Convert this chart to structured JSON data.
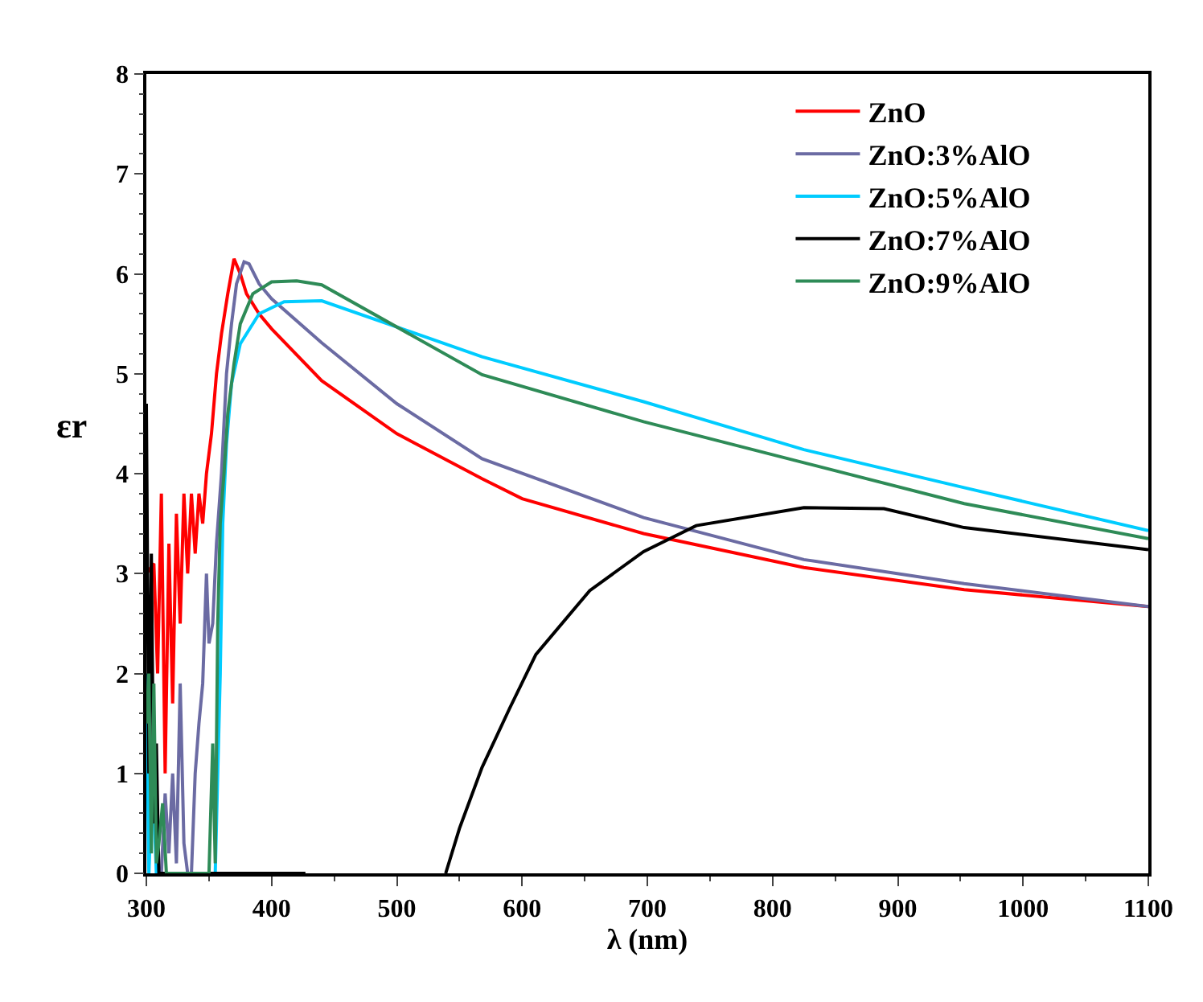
{
  "chart_data": {
    "type": "line",
    "xlabel": "λ (nm)",
    "ylabel": "εr",
    "xlim": [
      300,
      1100
    ],
    "xticks": [
      300,
      400,
      500,
      600,
      700,
      800,
      900,
      1000,
      1100
    ],
    "ylim": [
      0,
      8
    ],
    "yticks": [
      0,
      1,
      2,
      3,
      4,
      5,
      6,
      7,
      8
    ],
    "legend": "top right",
    "marker": "none",
    "line_style": "solid",
    "series": [
      {
        "name": "ZnO",
        "color": "#ff0000",
        "x": [
          300,
          306,
          309,
          312,
          315,
          318,
          321,
          324,
          327,
          330,
          333,
          336,
          339,
          342,
          345,
          348,
          352,
          356,
          360,
          365,
          370,
          375,
          380,
          390,
          400,
          440,
          500,
          568,
          600,
          697,
          825,
          953,
          1100
        ],
        "values": [
          3.0,
          3.1,
          2.0,
          3.8,
          1.0,
          3.3,
          1.7,
          3.6,
          2.5,
          3.8,
          3.0,
          3.8,
          3.2,
          3.8,
          3.5,
          4.0,
          4.4,
          5.0,
          5.4,
          5.8,
          6.15,
          6.0,
          5.8,
          5.6,
          5.45,
          4.93,
          4.4,
          3.95,
          3.75,
          3.4,
          3.06,
          2.84,
          2.67
        ]
      },
      {
        "name": "ZnO:3%AlO",
        "color": "#6b6ba3",
        "x": [
          312,
          315,
          318,
          321,
          324,
          327,
          330,
          333,
          336,
          339,
          342,
          345,
          348,
          350,
          353,
          356,
          360,
          364,
          368,
          372,
          378,
          382,
          390,
          400,
          440,
          500,
          568,
          697,
          825,
          953,
          1100
        ],
        "values": [
          0,
          0.8,
          0.2,
          1.0,
          0.1,
          1.9,
          0.3,
          0,
          0,
          1.0,
          1.5,
          1.9,
          3.0,
          2.3,
          2.5,
          3.3,
          4.0,
          5.0,
          5.5,
          5.9,
          6.12,
          6.1,
          5.9,
          5.75,
          5.31,
          4.7,
          4.15,
          3.56,
          3.14,
          2.9,
          2.67
        ]
      },
      {
        "name": "ZnO:5%AlO",
        "color": "#00ccff",
        "x": [
          300,
          302,
          305,
          308,
          355,
          357,
          359,
          361,
          364,
          368,
          375,
          390,
          410,
          440,
          568,
          697,
          825,
          953,
          1100
        ],
        "values": [
          2.0,
          0,
          1.0,
          0,
          0,
          1.0,
          2.0,
          3.5,
          4.3,
          4.9,
          5.3,
          5.6,
          5.72,
          5.73,
          5.17,
          4.72,
          4.24,
          3.86,
          3.43
        ]
      },
      {
        "name": "ZnO:7%AlO",
        "color": "#000000",
        "x": [
          300,
          302,
          304,
          306,
          308,
          310,
          427,
          480,
          539,
          550,
          568,
          590,
          611,
          654,
          697,
          739,
          825,
          889,
          953,
          1100
        ],
        "values": [
          4.7,
          1.0,
          3.2,
          0.5,
          1.3,
          0,
          0,
          null,
          0,
          0.45,
          1.06,
          1.65,
          2.19,
          2.83,
          3.22,
          3.48,
          3.66,
          3.65,
          3.46,
          3.24
        ]
      },
      {
        "name": "ZnO:9%AlO",
        "color": "#2e8b57",
        "x": [
          300,
          302,
          304,
          306,
          308,
          310,
          313,
          316,
          350,
          353,
          355,
          357,
          359,
          362,
          365,
          370,
          375,
          385,
          400,
          420,
          440,
          568,
          697,
          825,
          953,
          1100
        ],
        "values": [
          1.5,
          2.0,
          0.2,
          1.9,
          0.1,
          0.3,
          0.7,
          0,
          0,
          1.3,
          0.1,
          2.5,
          3.5,
          4.0,
          4.6,
          5.1,
          5.5,
          5.8,
          5.92,
          5.93,
          5.89,
          4.99,
          4.52,
          4.11,
          3.7,
          3.35
        ]
      }
    ]
  }
}
